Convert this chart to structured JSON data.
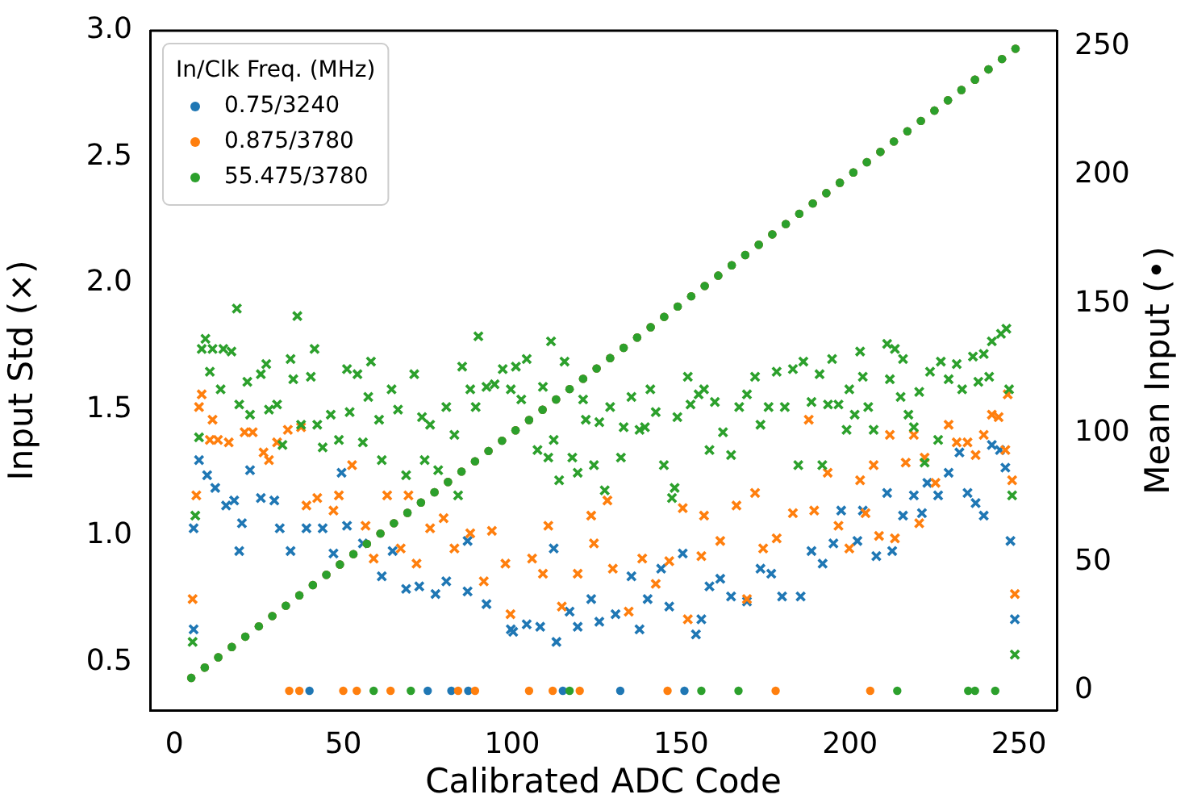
{
  "chart_data": {
    "type": "scatter",
    "xlabel": "Calibrated ADC Code",
    "ylabel": "Input Std (×)",
    "y2label": "Mean Input (•)",
    "legend_title": "In/Clk Freq. (MHz)",
    "legend": "top left",
    "xlim": [
      -7.2,
      261.2
    ],
    "xticks": [
      0,
      50,
      100,
      150,
      200,
      250
    ],
    "ylim": [
      0.31,
      3.0
    ],
    "yticks": [
      0.5,
      {
        "value": 1.0,
        "label": "1.0"
      },
      1.5,
      {
        "value": 2.0,
        "label": "2.0"
      },
      2.5,
      {
        "value": 3.0,
        "label": "3.0"
      }
    ],
    "y2lim": [
      -7.5,
      256
    ],
    "y2ticks": [
      0,
      50,
      100,
      150,
      200,
      250
    ],
    "series": [
      {
        "color": "#1f77b4",
        "marker": "cross",
        "x": [
          5.7,
          5.7,
          7.3,
          9.7,
          12.1,
          15.3,
          17.7,
          20,
          19.2,
          22.4,
          25.6,
          29.6,
          31.2,
          34.4,
          39.1,
          43.9,
          47.1,
          49.5,
          51.1,
          55.8,
          61.4,
          64.6,
          68.6,
          72.5,
          77.3,
          80.5,
          86.8,
          86.8,
          92.4,
          99.6,
          100.3,
          104.3,
          108.3,
          112.3,
          113.1,
          117,
          119.4,
          123.4,
          125.8,
          130.6,
          135.3,
          137.7,
          140.1,
          144.1,
          146.5,
          150.5,
          154.4,
          156,
          158.4,
          161.6,
          164.8,
          169.5,
          173.5,
          176.7,
          179.9,
          185.4,
          188.6,
          191.9,
          195.1,
          197.4,
          202.2,
          203.8,
          207.8,
          211,
          212.5,
          215.7,
          218.9,
          221.3,
          222.9,
          226.1,
          229.2,
          232.4,
          234.8,
          237.2,
          239.6,
          242,
          244.4,
          246,
          247.5,
          248.8
        ],
        "values": [
          0.63,
          1.03,
          1.3,
          1.24,
          1.19,
          1.12,
          1.14,
          1.05,
          0.94,
          1.26,
          1.15,
          1.14,
          1.03,
          0.94,
          1.03,
          1.03,
          0.93,
          1.25,
          1.04,
          0.97,
          0.84,
          0.94,
          0.79,
          0.8,
          0.77,
          0.82,
          0.78,
          0.98,
          0.73,
          0.63,
          0.62,
          0.65,
          0.64,
          0.95,
          0.58,
          0.7,
          0.64,
          0.75,
          0.66,
          0.69,
          0.84,
          0.63,
          0.75,
          0.87,
          0.72,
          0.93,
          0.61,
          0.67,
          0.8,
          0.83,
          0.76,
          0.74,
          0.87,
          0.85,
          0.76,
          0.76,
          0.94,
          0.89,
          0.97,
          1.1,
          0.98,
          1.1,
          0.92,
          1.17,
          0.94,
          1.08,
          1.16,
          1.09,
          1.21,
          1.16,
          1.25,
          1.33,
          1.17,
          1.13,
          1.08,
          1.36,
          1.34,
          1.27,
          0.98,
          0.67
        ]
      },
      {
        "color": "#ff7f0e",
        "marker": "cross",
        "x": [
          5.4,
          6.5,
          7.3,
          8.1,
          10.5,
          11.3,
          12.9,
          16.1,
          20.8,
          23.2,
          26.4,
          28,
          30.4,
          33.6,
          37.5,
          39.1,
          42.3,
          47.1,
          48.7,
          52.6,
          56.6,
          59,
          63,
          67,
          69.3,
          71.7,
          75.7,
          79.7,
          82.9,
          87.6,
          91.6,
          94,
          98,
          99.5,
          105.9,
          109.1,
          110.7,
          114.7,
          119.4,
          123.4,
          124.2,
          128.2,
          129.8,
          134.5,
          138.5,
          142.5,
          146.5,
          150.5,
          152,
          156,
          156.8,
          161.6,
          166.4,
          169.5,
          171.9,
          174.3,
          178.3,
          183.1,
          187.8,
          189.4,
          193.4,
          196.6,
          199.8,
          203,
          204.6,
          207,
          208.6,
          211.8,
          213.3,
          216.5,
          218.9,
          220.5,
          222.1,
          225.3,
          229.2,
          231.6,
          234.8,
          237.2,
          239.6,
          242,
          244,
          246,
          246.7,
          248,
          248.8
        ],
        "values": [
          0.75,
          1.16,
          1.51,
          1.56,
          1.38,
          1.46,
          1.38,
          1.37,
          1.41,
          1.41,
          1.33,
          1.3,
          1.37,
          1.42,
          1.43,
          1.12,
          1.15,
          1.1,
          1.16,
          1.28,
          1.04,
          0.91,
          1.16,
          0.95,
          1.16,
          0.89,
          1.03,
          1.07,
          0.95,
          1.01,
          0.82,
          1.02,
          0.89,
          0.69,
          0.91,
          0.85,
          1.04,
          0.72,
          0.85,
          1.08,
          0.97,
          1.14,
          0.87,
          0.7,
          0.91,
          0.81,
          0.9,
          1.11,
          0.67,
          0.92,
          1.08,
          0.98,
          1.12,
          0.75,
          1.17,
          0.95,
          0.99,
          1.09,
          1.46,
          1.1,
          1.25,
          1.04,
          0.95,
          1.22,
          1.09,
          1.28,
          1.0,
          1.4,
          0.99,
          1.29,
          1.4,
          1.05,
          1.31,
          1.21,
          1.44,
          1.37,
          1.37,
          1.32,
          1.4,
          1.48,
          1.47,
          1.34,
          1.56,
          1.22,
          0.77
        ]
      },
      {
        "color": "#2ca02c",
        "marker": "cross",
        "x": [
          5.4,
          6.2,
          7.3,
          8.1,
          9.2,
          10.5,
          11.3,
          13.7,
          14.5,
          16.9,
          18.5,
          19.2,
          21.6,
          22.4,
          25.6,
          27.2,
          28,
          30.4,
          32,
          34.4,
          35.2,
          36.4,
          37.5,
          40.4,
          41.5,
          42.3,
          43.9,
          46.3,
          48.7,
          51.1,
          51.9,
          54.2,
          55.8,
          57.4,
          58.2,
          60.6,
          61.4,
          64.3,
          66.2,
          68.6,
          71,
          73.3,
          74.1,
          75.7,
          78.1,
          80.5,
          82.9,
          84,
          85.2,
          87.6,
          89.2,
          90,
          92.4,
          94.8,
          97.2,
          99.6,
          101.1,
          102.7,
          104.3,
          107.5,
          109.1,
          110.7,
          111.5,
          112.3,
          113.9,
          115.5,
          117.8,
          119.4,
          121,
          121.8,
          124.2,
          125.8,
          127.4,
          129,
          132.2,
          133,
          135.3,
          137.7,
          139.3,
          140.9,
          142.5,
          144.9,
          147.3,
          148.1,
          148.9,
          152,
          152.8,
          155.2,
          156.8,
          158.4,
          160,
          162.4,
          164.8,
          167.2,
          169.5,
          171.9,
          173.5,
          175.9,
          178.3,
          180.7,
          183.1,
          184.7,
          186.2,
          188.6,
          191,
          191.8,
          193.5,
          194.7,
          196.6,
          199,
          199.8,
          201.4,
          203,
          203.8,
          205.4,
          207,
          211,
          211.8,
          213.3,
          215,
          215.7,
          217.3,
          218.9,
          220.5,
          222.1,
          223.7,
          226.1,
          226.9,
          229.2,
          231.6,
          233.2,
          236.4,
          238,
          239.6,
          241.2,
          242,
          244.7,
          246.3,
          247.1,
          248,
          248.8
        ],
        "values": [
          0.58,
          1.08,
          1.39,
          1.74,
          1.78,
          1.65,
          1.74,
          1.58,
          1.74,
          1.73,
          1.9,
          1.52,
          1.61,
          1.48,
          1.64,
          1.68,
          1.5,
          1.52,
          1.36,
          1.7,
          1.62,
          1.87,
          1.44,
          1.63,
          1.74,
          1.44,
          1.35,
          1.48,
          1.38,
          1.66,
          1.49,
          1.64,
          1.37,
          1.55,
          1.69,
          1.46,
          1.3,
          1.58,
          1.5,
          1.24,
          1.64,
          1.47,
          1.3,
          1.44,
          1.26,
          1.51,
          1.4,
          1.16,
          1.67,
          1.58,
          1.51,
          1.79,
          1.59,
          1.6,
          1.66,
          1.58,
          1.67,
          1.54,
          1.7,
          1.34,
          1.59,
          1.31,
          1.77,
          1.38,
          1.22,
          1.69,
          1.31,
          1.25,
          1.54,
          1.46,
          1.28,
          1.45,
          1.18,
          1.51,
          1.31,
          1.43,
          1.55,
          1.42,
          1.43,
          1.58,
          1.49,
          1.28,
          1.15,
          1.19,
          1.47,
          1.63,
          1.52,
          1.56,
          1.58,
          1.34,
          1.53,
          1.41,
          1.32,
          1.51,
          1.56,
          1.63,
          1.44,
          1.51,
          1.65,
          1.51,
          1.66,
          1.28,
          1.69,
          1.53,
          1.64,
          1.28,
          1.52,
          1.7,
          1.52,
          1.42,
          1.58,
          1.48,
          1.73,
          1.63,
          1.51,
          1.42,
          1.76,
          1.62,
          1.74,
          1.55,
          1.7,
          1.48,
          1.43,
          1.57,
          1.29,
          1.65,
          1.38,
          1.69,
          1.62,
          1.68,
          1.58,
          1.71,
          1.61,
          1.72,
          1.63,
          1.77,
          1.8,
          1.82,
          1.58,
          1.16,
          0.53
        ]
      },
      {
        "name": "0.75/3240",
        "color": "#1f77b4",
        "marker": "circle",
        "axis": "y2",
        "x": [
          5,
          9,
          13,
          17,
          21,
          25,
          29,
          33,
          37,
          41,
          45,
          49,
          53,
          57,
          61,
          65,
          69,
          73,
          77,
          81,
          85,
          89,
          93,
          97,
          101,
          105,
          109,
          113,
          117,
          121,
          125,
          129,
          133,
          137,
          141,
          145,
          149,
          153,
          157,
          161,
          165,
          169,
          173,
          177,
          181,
          185,
          189,
          193,
          197,
          201,
          205,
          209,
          213,
          217,
          221,
          225,
          229,
          233,
          237,
          241,
          245,
          249,
          40,
          75,
          82,
          87,
          115,
          132,
          151
        ],
        "values": [
          5,
          9,
          13,
          17,
          21,
          25,
          29,
          33,
          37,
          41,
          45,
          49,
          53,
          57,
          61,
          65,
          69,
          73,
          77,
          81,
          85,
          89,
          93,
          97,
          101,
          105,
          109,
          113,
          117,
          121,
          125,
          129,
          133,
          137,
          141,
          145,
          149,
          153,
          157,
          161,
          165,
          169,
          173,
          177,
          181,
          185,
          189,
          193,
          197,
          201,
          205,
          209,
          213,
          217,
          221,
          225,
          229,
          233,
          237,
          241,
          245,
          249,
          0,
          0,
          0,
          0,
          0,
          0,
          0
        ]
      },
      {
        "name": "0.875/3780",
        "color": "#ff7f0e",
        "marker": "circle",
        "axis": "y2",
        "x": [
          5,
          9,
          13,
          17,
          21,
          25,
          29,
          33,
          37,
          41,
          45,
          49,
          53,
          57,
          61,
          65,
          69,
          73,
          77,
          81,
          85,
          89,
          93,
          97,
          101,
          105,
          109,
          113,
          117,
          121,
          125,
          129,
          133,
          137,
          141,
          145,
          149,
          153,
          157,
          161,
          165,
          169,
          173,
          177,
          181,
          185,
          189,
          193,
          197,
          201,
          205,
          209,
          213,
          217,
          221,
          225,
          229,
          233,
          237,
          241,
          245,
          249,
          34,
          37,
          50,
          54,
          64,
          84,
          89,
          105,
          112,
          120,
          146,
          178,
          206
        ],
        "values": [
          5,
          9,
          13,
          17,
          21,
          25,
          29,
          33,
          37,
          41,
          45,
          49,
          53,
          57,
          61,
          65,
          69,
          73,
          77,
          81,
          85,
          89,
          93,
          97,
          101,
          105,
          109,
          113,
          117,
          121,
          125,
          129,
          133,
          137,
          141,
          145,
          149,
          153,
          157,
          161,
          165,
          169,
          173,
          177,
          181,
          185,
          189,
          193,
          197,
          201,
          205,
          209,
          213,
          217,
          221,
          225,
          229,
          233,
          237,
          241,
          245,
          249,
          0,
          0,
          0,
          0,
          0,
          0,
          0,
          0,
          0,
          0,
          0,
          0,
          0
        ]
      },
      {
        "name": "55.475/3780",
        "color": "#2ca02c",
        "marker": "circle",
        "axis": "y2",
        "x": [
          5,
          9,
          13,
          17,
          21,
          25,
          29,
          33,
          37,
          41,
          45,
          49,
          53,
          57,
          61,
          65,
          69,
          73,
          77,
          81,
          85,
          89,
          93,
          97,
          101,
          105,
          109,
          113,
          117,
          121,
          125,
          129,
          133,
          137,
          141,
          145,
          149,
          153,
          157,
          161,
          165,
          169,
          173,
          177,
          181,
          185,
          189,
          193,
          197,
          201,
          205,
          209,
          213,
          217,
          221,
          225,
          229,
          233,
          237,
          241,
          245,
          249,
          59,
          70,
          117,
          156,
          167,
          214,
          235,
          237,
          243
        ],
        "values": [
          5,
          9,
          13,
          17,
          21,
          25,
          29,
          33,
          37,
          41,
          45,
          49,
          53,
          57,
          61,
          65,
          69,
          73,
          77,
          81,
          85,
          89,
          93,
          97,
          101,
          105,
          109,
          113,
          117,
          121,
          125,
          129,
          133,
          137,
          141,
          145,
          149,
          153,
          157,
          161,
          165,
          169,
          173,
          177,
          181,
          185,
          189,
          193,
          197,
          201,
          205,
          209,
          213,
          217,
          221,
          225,
          229,
          233,
          237,
          241,
          245,
          249,
          0,
          0,
          0,
          0,
          0,
          0,
          0,
          0,
          0
        ]
      }
    ]
  }
}
